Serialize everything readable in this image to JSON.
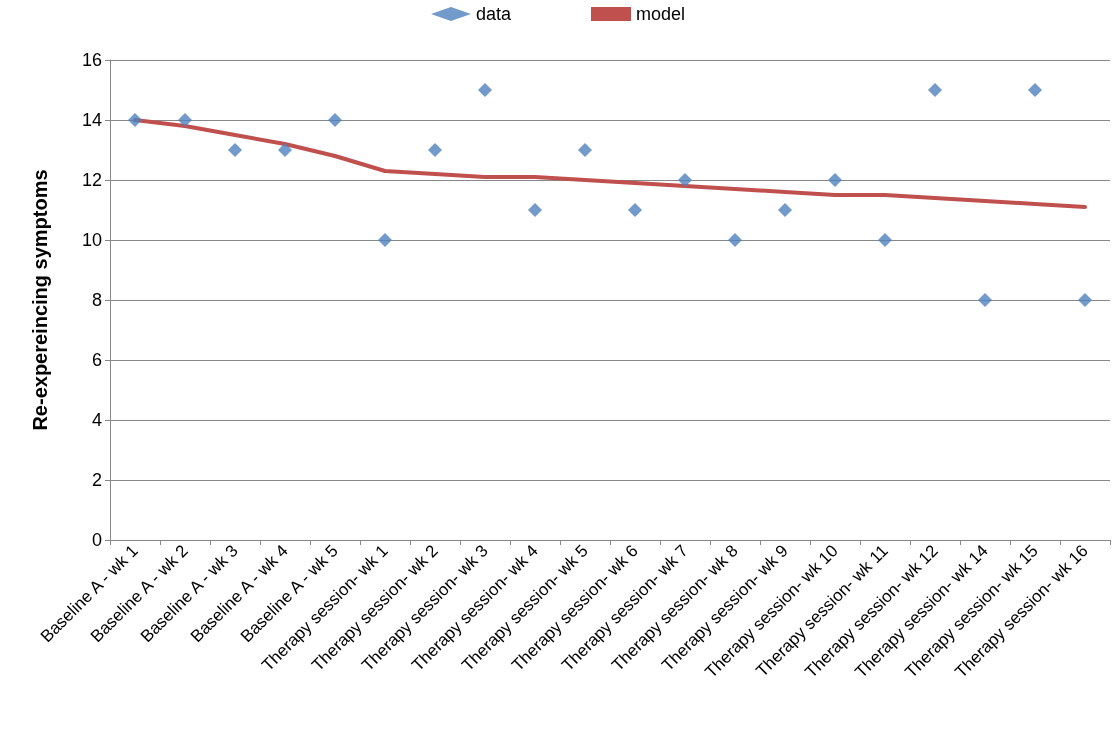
{
  "chart_data": {
    "type": "scatter",
    "ylabel": "Re-expereincing symptoms",
    "categories": [
      "Baseline A - wk 1",
      "Baseline A - wk 2",
      "Baseline A - wk 3",
      "Baseline A - wk 4",
      "Baseline A - wk 5",
      "Therapy session- wk 1",
      "Therapy session- wk 2",
      "Therapy session- wk 3",
      "Therapy session- wk 4",
      "Therapy session- wk 5",
      "Therapy session- wk 6",
      "Therapy session- wk 7",
      "Therapy session- wk 8",
      "Therapy session- wk 9",
      "Therapy session- wk 10",
      "Therapy session- wk 11",
      "Therapy session- wk 12",
      "Therapy session- wk 14",
      "Therapy session- wk 15",
      "Therapy session- wk 16"
    ],
    "series": [
      {
        "name": "data",
        "color": "#4f81bd",
        "marker": "diamond",
        "values": [
          14,
          14,
          13,
          13,
          14,
          10,
          13,
          15,
          11,
          13,
          11,
          12,
          10,
          11,
          12,
          10,
          15,
          8,
          15,
          8
        ]
      },
      {
        "name": "model",
        "type": "line",
        "color": "#c0504d",
        "marker": "none",
        "line_style": "solid",
        "values": [
          14,
          13.8,
          13.5,
          13.2,
          12.8,
          12.3,
          12.2,
          12.1,
          12.1,
          12,
          11.9,
          11.8,
          11.7,
          11.6,
          11.5,
          11.5,
          11.4,
          11.3,
          11.2,
          11.1
        ]
      }
    ],
    "ylim": [
      0,
      16
    ],
    "yticks": [
      0,
      2,
      4,
      6,
      8,
      10,
      12,
      14,
      16
    ],
    "grid": "y",
    "legend": "top"
  }
}
